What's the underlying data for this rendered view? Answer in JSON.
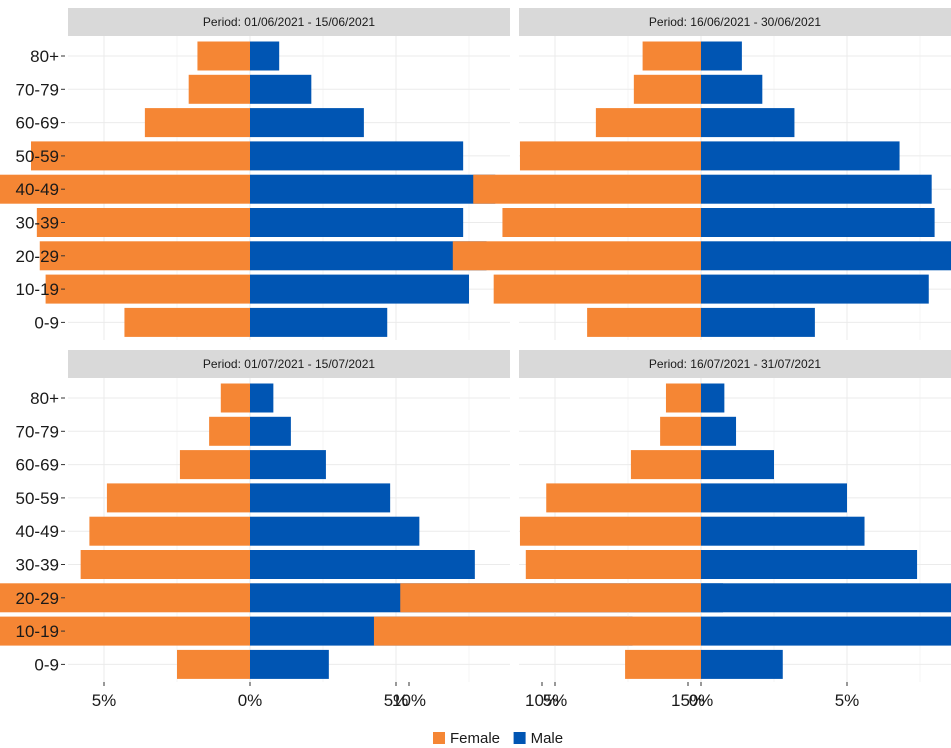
{
  "chart_data": {
    "type": "bar",
    "orientation": "horizontal",
    "layout": "2x2 facets, butterfly (population pyramid)",
    "categories": [
      "0-9",
      "10-19",
      "20-29",
      "30-39",
      "40-49",
      "50-59",
      "60-69",
      "70-79",
      "80+"
    ],
    "x_tick_labels": [
      "10%",
      "5%",
      "0%",
      "5%",
      "10%",
      "15%"
    ],
    "x_tick_values": [
      -10,
      -5,
      0,
      5,
      10,
      15
    ],
    "xlim": [
      -10.5,
      16.5
    ],
    "xlabel": "",
    "ylabel": "",
    "grid": true,
    "legend": {
      "position": "bottom",
      "entries": [
        {
          "name": "Female",
          "color": "#F58634"
        },
        {
          "name": "Male",
          "color": "#0055B3"
        }
      ]
    },
    "panels": [
      {
        "title": "Period: 01/06/2021 - 15/06/2021",
        "series": [
          {
            "name": "Female",
            "values": [
              4.3,
              7.0,
              7.2,
              7.3,
              8.6,
              7.5,
              3.6,
              2.1,
              1.8
            ]
          },
          {
            "name": "Male",
            "values": [
              4.7,
              7.5,
              8.1,
              7.3,
              8.4,
              7.3,
              3.9,
              2.1,
              1.0
            ]
          }
        ]
      },
      {
        "title": "Period: 16/06/2021 - 30/06/2021",
        "series": [
          {
            "name": "Female",
            "values": [
              3.9,
              7.1,
              8.5,
              6.8,
              7.8,
              6.2,
              3.6,
              2.3,
              2.0
            ]
          },
          {
            "name": "Male",
            "values": [
              3.9,
              7.8,
              10.7,
              8.0,
              7.9,
              6.8,
              3.2,
              2.1,
              1.4
            ]
          }
        ]
      },
      {
        "title": "Period: 01/07/2021 - 15/07/2021",
        "series": [
          {
            "name": "Female",
            "values": [
              2.5,
              10.5,
              10.6,
              5.8,
              5.5,
              4.9,
              2.4,
              1.4,
              1.0
            ]
          },
          {
            "name": "Male",
            "values": [
              2.7,
              13.1,
              16.2,
              7.7,
              5.8,
              4.8,
              2.6,
              1.4,
              0.8
            ]
          }
        ]
      },
      {
        "title": "Period: 16/07/2021 - 31/07/2021",
        "series": [
          {
            "name": "Female",
            "values": [
              2.6,
              11.2,
              10.3,
              6.0,
              6.2,
              5.3,
              2.4,
              1.4,
              1.2
            ]
          },
          {
            "name": "Male",
            "values": [
              2.8,
              13.2,
              14.8,
              7.4,
              5.6,
              5.0,
              2.5,
              1.2,
              0.8
            ]
          }
        ]
      }
    ]
  },
  "colors": {
    "female": "#F58634",
    "male": "#0055B3",
    "strip_background": "#D9D9D9",
    "gridline": "#EBEBEB",
    "text": "#1A1A1A"
  }
}
